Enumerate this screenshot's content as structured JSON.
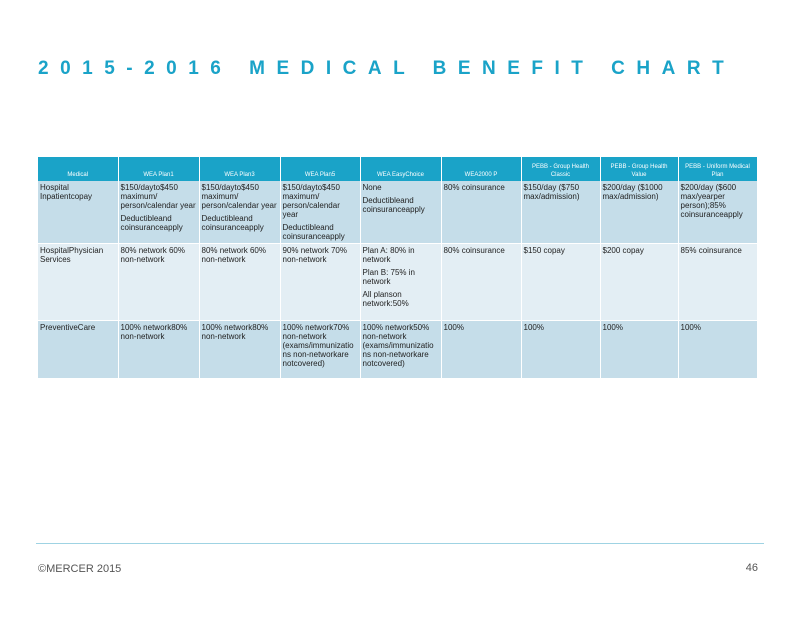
{
  "title": "2015-2016 MEDICAL BENEFIT CHART",
  "table": {
    "headers": [
      "Medical",
      "WEA Plan1",
      "WEA Plan3",
      "WEA Plan5",
      "WEA EasyChoice",
      "WEA2000 P",
      "PEBB - Group Health Classic",
      "PEBB - Group Health Value",
      "PEBB - Uniform Medical Plan"
    ],
    "rows": [
      {
        "cells": [
          [
            "Hospital Inpatientcopay"
          ],
          [
            "$150/daytо$450 maximum/ person/calendar year",
            "Deductibleand coinsuranceapply"
          ],
          [
            "$150/daytо$450 maximum/ person/calendar year",
            "Deductibleand coinsuranceapply"
          ],
          [
            "$150/daytо$450 maximum/ person/calendar year",
            "Deductibleand coinsuranceapply"
          ],
          [
            "None",
            "Deductibleand coinsuranceapply"
          ],
          [
            "80% coinsurance"
          ],
          [
            "$150/day ($750 max/admission)"
          ],
          [
            "$200/day ($1000 max/admission)"
          ],
          [
            "$200/day ($600 max/yearper person);85% coinsuranceapply"
          ]
        ]
      },
      {
        "cells": [
          [
            "HospitalPhysician Services"
          ],
          [
            "80% network 60% non-network"
          ],
          [
            "80% network 60% non-network"
          ],
          [
            "90% network 70% non-network"
          ],
          [
            "Plan A: 80% in network",
            "Plan B: 75% in network",
            "All planson network:50%"
          ],
          [
            "80% coinsurance"
          ],
          [
            "$150 copay"
          ],
          [
            "$200 copay"
          ],
          [
            "85% coinsurance"
          ]
        ]
      },
      {
        "cells": [
          [
            "PreventiveCare"
          ],
          [
            "100% network80% non-network"
          ],
          [
            "100% network80% non-network"
          ],
          [
            "100% network70% non-network (exams/immunizatio ns non-networkare notcovered)"
          ],
          [
            "100% network50% non-network (exams/immunizatio ns non-networkare notcovered)"
          ],
          [
            "100%"
          ],
          [
            "100%"
          ],
          [
            "100%"
          ],
          [
            "100%"
          ]
        ]
      }
    ]
  },
  "footer": {
    "copyright": "©MERCER 2015",
    "page_number": "46"
  }
}
